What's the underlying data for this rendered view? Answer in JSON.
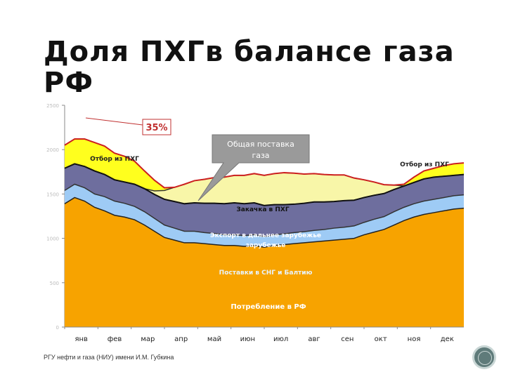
{
  "slide": {
    "title_line1": "Доля ПХГв балансе газа",
    "title_line2": "РФ",
    "footer": "РГУ нефти и газа (НИУ) имени И.М. Губкина"
  },
  "chart_data": {
    "type": "area",
    "stacked": true,
    "title": "",
    "xlabel": "",
    "ylabel": "",
    "ylim": [
      0,
      2500
    ],
    "yticks": [
      "0",
      "500",
      "1000",
      "1500",
      "2000",
      "2500"
    ],
    "categories": [
      "янв",
      "фев",
      "мар",
      "апр",
      "май",
      "июн",
      "июл",
      "авг",
      "сен",
      "окт",
      "ноя",
      "дек"
    ],
    "x": [
      0,
      0.3,
      0.6,
      0.9,
      1.2,
      1.5,
      1.8,
      2.1,
      2.4,
      2.7,
      3.0,
      3.3,
      3.6,
      3.9,
      4.2,
      4.5,
      4.8,
      5.1,
      5.4,
      5.7,
      6.0,
      6.3,
      6.6,
      6.9,
      7.2,
      7.5,
      7.8,
      8.1,
      8.4,
      8.7,
      9.0,
      9.3,
      9.6,
      9.9,
      10.2,
      10.5,
      10.8,
      11.1,
      11.4,
      11.7,
      12.0
    ],
    "series": [
      {
        "name": "Потребление в РФ",
        "color": "#f7a300",
        "values": [
          1390,
          1460,
          1420,
          1350,
          1310,
          1260,
          1240,
          1210,
          1150,
          1080,
          1010,
          980,
          950,
          950,
          940,
          930,
          920,
          920,
          910,
          920,
          900,
          920,
          930,
          940,
          950,
          960,
          970,
          980,
          990,
          1000,
          1040,
          1070,
          1100,
          1150,
          1200,
          1240,
          1270,
          1290,
          1310,
          1330,
          1340
        ]
      },
      {
        "name": "Поставки в СНГ и Балтию",
        "color": "#9ecbf5",
        "values": [
          150,
          150,
          150,
          150,
          160,
          160,
          155,
          150,
          150,
          145,
          140,
          135,
          130,
          130,
          125,
          125,
          120,
          120,
          120,
          120,
          120,
          120,
          120,
          125,
          125,
          130,
          130,
          135,
          135,
          140,
          140,
          145,
          145,
          150,
          150,
          150,
          150,
          150,
          150,
          150,
          150
        ]
      },
      {
        "name": "Экспорт в дальнее зарубежье",
        "color": "#6e6e9e",
        "values": [
          250,
          230,
          240,
          260,
          250,
          240,
          240,
          250,
          260,
          270,
          290,
          300,
          310,
          320,
          330,
          340,
          350,
          360,
          360,
          360,
          350,
          340,
          330,
          320,
          320,
          320,
          310,
          300,
          300,
          290,
          280,
          270,
          260,
          250,
          240,
          240,
          250,
          250,
          240,
          230,
          230
        ]
      },
      {
        "name": "Закачка в ПХГ",
        "color": "#f8f6a8",
        "values": [
          0,
          0,
          0,
          0,
          0,
          0,
          0,
          0,
          0,
          40,
          100,
          160,
          220,
          250,
          270,
          290,
          300,
          310,
          320,
          330,
          340,
          350,
          360,
          350,
          330,
          320,
          310,
          300,
          290,
          250,
          200,
          150,
          100,
          50,
          0,
          0,
          0,
          0,
          0,
          0,
          0
        ]
      },
      {
        "name": "Отбор из ПХГ",
        "color": "#ffff1e",
        "values": [
          260,
          280,
          310,
          320,
          320,
          300,
          290,
          260,
          200,
          120,
          30,
          0,
          0,
          0,
          0,
          0,
          0,
          0,
          0,
          0,
          0,
          0,
          0,
          0,
          0,
          0,
          0,
          0,
          0,
          0,
          0,
          0,
          0,
          0,
          20,
          60,
          90,
          100,
          120,
          130,
          130
        ]
      }
    ],
    "annotations": [
      {
        "text": "Потребление в РФ"
      },
      {
        "text": "Поставки в СНГ и Балтию"
      },
      {
        "text": "Экспорт в дальнее зарубежье"
      },
      {
        "text": "Закачка в ПХГ"
      },
      {
        "text": "Отбор из ПХГ"
      },
      {
        "text": "Отбор из ПХГ"
      },
      {
        "text": "35%"
      },
      {
        "text": "Общая поставка газа"
      }
    ]
  }
}
